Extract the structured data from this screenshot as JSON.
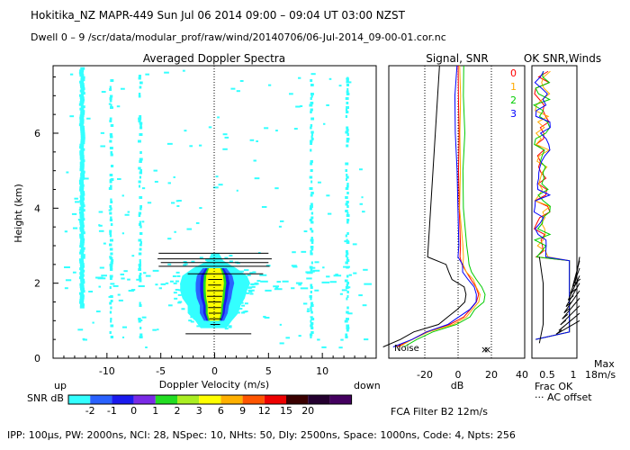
{
  "header": {
    "line1": "Hokitika_NZ   MAPR-449   Sun Jul 06 2014 09:00 – 09:04 UT 03:00 NZST",
    "line2": "Dwell   0  –  9    /scr/data/modular_prof/raw/wind/20140706/06-Jul-2014_09-00-01.cor.nc"
  },
  "footer": {
    "params": "IPP: 100µs,   PW: 2000ns,   NCI:  28,   NSpec: 10,  NHts: 50,   Dly: 2500ns,   Space: 1000ns,   Code: 4,   Npts: 256",
    "filter": "FCA Filter B2 12m/s"
  },
  "colorbar": {
    "label": "SNR dB",
    "ticks": [
      "-2",
      "-1",
      "0",
      "1",
      "2",
      "3",
      "6",
      "9",
      "12",
      "15",
      "20"
    ],
    "colors": [
      "#33ffff",
      "#2a62ff",
      "#1a1aee",
      "#7a2ae6",
      "#22dd22",
      "#aaee22",
      "#ffff00",
      "#ffb000",
      "#ff5500",
      "#ee0000",
      "#3a0000",
      "#240030",
      "#440060"
    ]
  },
  "chart_data": [
    {
      "type": "heatmap",
      "title": "Averaged Doppler Spectra",
      "xlabel": "Doppler Velocity (m/s)",
      "ylabel": "Height (km)",
      "xlim": [
        -15,
        15
      ],
      "ylim": [
        0,
        7.8
      ],
      "xticks": [
        "-10",
        "-5",
        "0",
        "5",
        "10"
      ],
      "yticks": [
        "0",
        "2",
        "4",
        "6"
      ],
      "left_label": "up",
      "right_label": "down",
      "echo_core": {
        "height_km": [
          0.8,
          1.0,
          1.2,
          1.4,
          1.6,
          1.8,
          2.0,
          2.2,
          2.4,
          2.6,
          2.8
        ],
        "velocity_min": [
          -1.3,
          -1.8,
          -2.5,
          -2.5,
          -3.0,
          -3.2,
          -3.2,
          -3.0,
          -2.0,
          -0.6,
          -0.3
        ],
        "velocity_max": [
          1.1,
          1.6,
          2.2,
          2.4,
          2.8,
          3.0,
          3.3,
          3.0,
          2.0,
          0.8,
          0.4
        ]
      },
      "noise_bands_velocity": [
        -12.3,
        -9.6,
        -6.9,
        9.0,
        12.3
      ]
    },
    {
      "type": "line",
      "title": "Signal, SNR",
      "xlabel": "dB",
      "xlim": [
        -30,
        40
      ],
      "ylim": [
        0,
        7.8
      ],
      "xticks": [
        "-20",
        "0",
        "20",
        "40"
      ],
      "annotation": "Noise",
      "series": [
        {
          "name": "0",
          "color": "#ff0000"
        },
        {
          "name": "1",
          "color": "#ffaa00"
        },
        {
          "name": "2",
          "color": "#00cc00"
        },
        {
          "name": "3",
          "color": "#0000ff"
        }
      ]
    },
    {
      "type": "line",
      "title": "OK SNR,Winds",
      "xlabel": "Frac OK",
      "xlim": [
        0,
        1.2
      ],
      "ylim": [
        0,
        7.8
      ],
      "xticks": [
        "0.5",
        "1"
      ],
      "legend": [
        "0",
        "1",
        "2",
        "3"
      ],
      "note": "··· AC offset",
      "max_label": "Max",
      "max_value": "18m/s"
    }
  ]
}
